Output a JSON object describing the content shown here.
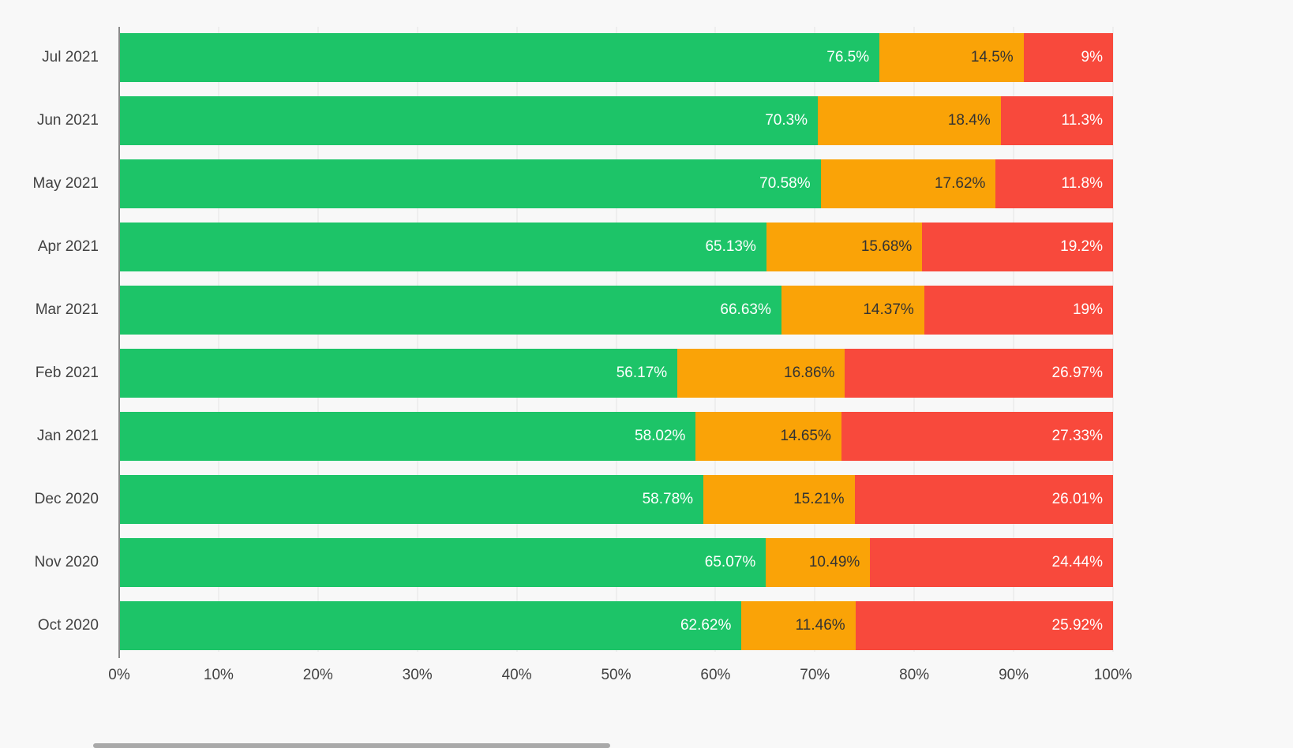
{
  "chart_data": {
    "type": "bar",
    "orientation": "horizontal",
    "stacked": true,
    "xlim": [
      0,
      100
    ],
    "grid": true,
    "x_ticks": [
      "0%",
      "10%",
      "20%",
      "30%",
      "40%",
      "50%",
      "60%",
      "70%",
      "80%",
      "90%",
      "100%"
    ],
    "series_names": [
      "green",
      "orange",
      "red"
    ],
    "colors": {
      "green": "#1DC468",
      "orange": "#FAA307",
      "red": "#F8493C"
    },
    "label_text_colors": {
      "green": "#FFFFFF",
      "orange": "#333333",
      "red": "#FFFFFF"
    },
    "rows": [
      {
        "category": "Jul 2021",
        "values": [
          76.5,
          14.5,
          9
        ],
        "labels": [
          "76.5%",
          "14.5%",
          "9%"
        ]
      },
      {
        "category": "Jun 2021",
        "values": [
          70.3,
          18.4,
          11.3
        ],
        "labels": [
          "70.3%",
          "18.4%",
          "11.3%"
        ]
      },
      {
        "category": "May 2021",
        "values": [
          70.58,
          17.62,
          11.8
        ],
        "labels": [
          "70.58%",
          "17.62%",
          "11.8%"
        ]
      },
      {
        "category": "Apr 2021",
        "values": [
          65.13,
          15.68,
          19.2
        ],
        "labels": [
          "65.13%",
          "15.68%",
          "19.2%"
        ]
      },
      {
        "category": "Mar 2021",
        "values": [
          66.63,
          14.37,
          19
        ],
        "labels": [
          "66.63%",
          "14.37%",
          "19%"
        ]
      },
      {
        "category": "Feb 2021",
        "values": [
          56.17,
          16.86,
          26.97
        ],
        "labels": [
          "56.17%",
          "16.86%",
          "26.97%"
        ]
      },
      {
        "category": "Jan 2021",
        "values": [
          58.02,
          14.65,
          27.33
        ],
        "labels": [
          "58.02%",
          "14.65%",
          "27.33%"
        ]
      },
      {
        "category": "Dec 2020",
        "values": [
          58.78,
          15.21,
          26.01
        ],
        "labels": [
          "58.78%",
          "15.21%",
          "26.01%"
        ]
      },
      {
        "category": "Nov 2020",
        "values": [
          65.07,
          10.49,
          24.44
        ],
        "labels": [
          "65.07%",
          "10.49%",
          "24.44%"
        ]
      },
      {
        "category": "Oct 2020",
        "values": [
          62.62,
          11.46,
          25.92
        ],
        "labels": [
          "62.62%",
          "11.46%",
          "25.92%"
        ]
      }
    ]
  }
}
